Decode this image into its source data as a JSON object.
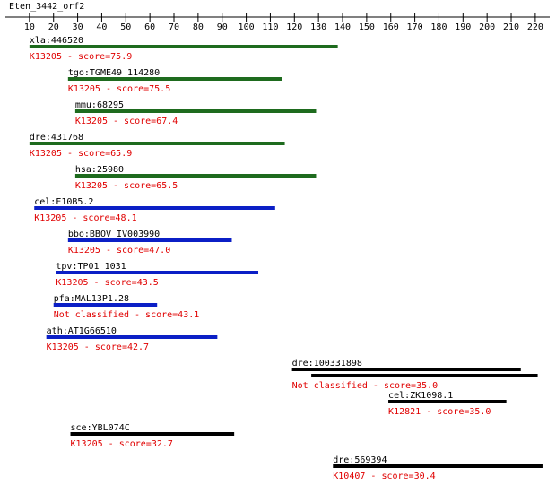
{
  "title": "Eten_3442_orf2",
  "ruler": {
    "lim": [
      0,
      226
    ],
    "ticks": [
      10,
      20,
      30,
      40,
      50,
      60,
      70,
      80,
      90,
      100,
      110,
      120,
      130,
      140,
      150,
      160,
      170,
      180,
      190,
      200,
      210,
      220
    ]
  },
  "hits": [
    {
      "name": "xla:446520",
      "label": "K13205 - score=75.9",
      "color": "#1e6b1e",
      "segments": [
        [
          10,
          138
        ]
      ]
    },
    {
      "name": "tgo:TGME49_114280",
      "label": "K13205 - score=75.5",
      "color": "#1e6b1e",
      "segments": [
        [
          26,
          115
        ]
      ]
    },
    {
      "name": "mmu:68295",
      "label": "K13205 - score=67.4",
      "color": "#1e6b1e",
      "segments": [
        [
          29,
          129
        ]
      ]
    },
    {
      "name": "dre:431768",
      "label": "K13205 - score=65.9",
      "color": "#1e6b1e",
      "segments": [
        [
          10,
          116
        ]
      ]
    },
    {
      "name": "hsa:25980",
      "label": "K13205 - score=65.5",
      "color": "#1e6b1e",
      "segments": [
        [
          29,
          129
        ]
      ]
    },
    {
      "name": "cel:F10B5.2",
      "label": "K13205 - score=48.1",
      "color": "#0b1fc6",
      "segments": [
        [
          12,
          112
        ]
      ]
    },
    {
      "name": "bbo:BBOV_IV003990",
      "label": "K13205 - score=47.0",
      "color": "#0b1fc6",
      "segments": [
        [
          26,
          94
        ]
      ]
    },
    {
      "name": "tpv:TP01_1031",
      "label": "K13205 - score=43.5",
      "color": "#0b1fc6",
      "segments": [
        [
          21,
          105
        ]
      ]
    },
    {
      "name": "pfa:MAL13P1.28",
      "label": "Not classified - score=43.1",
      "color": "#0b1fc6",
      "segments": [
        [
          20,
          63
        ]
      ]
    },
    {
      "name": "ath:AT1G66510",
      "label": "K13205 - score=42.7",
      "color": "#0b1fc6",
      "segments": [
        [
          17,
          88
        ]
      ]
    },
    {
      "name": "dre:100331898",
      "label": "Not classified - score=35.0",
      "color": "#000000",
      "segments": [
        [
          119,
          214
        ],
        [
          127,
          221
        ]
      ]
    },
    {
      "name": "cel:ZK1098.1",
      "label": "K12821 - score=35.0",
      "color": "#000000",
      "segments": [
        [
          159,
          208
        ]
      ]
    },
    {
      "name": "sce:YBL074C",
      "label": "K13205 - score=32.7",
      "color": "#000000",
      "segments": [
        [
          27,
          95
        ]
      ]
    },
    {
      "name": "dre:569394",
      "label": "K10407 - score=30.4",
      "color": "#000000",
      "segments": [
        [
          136,
          223
        ]
      ]
    }
  ]
}
